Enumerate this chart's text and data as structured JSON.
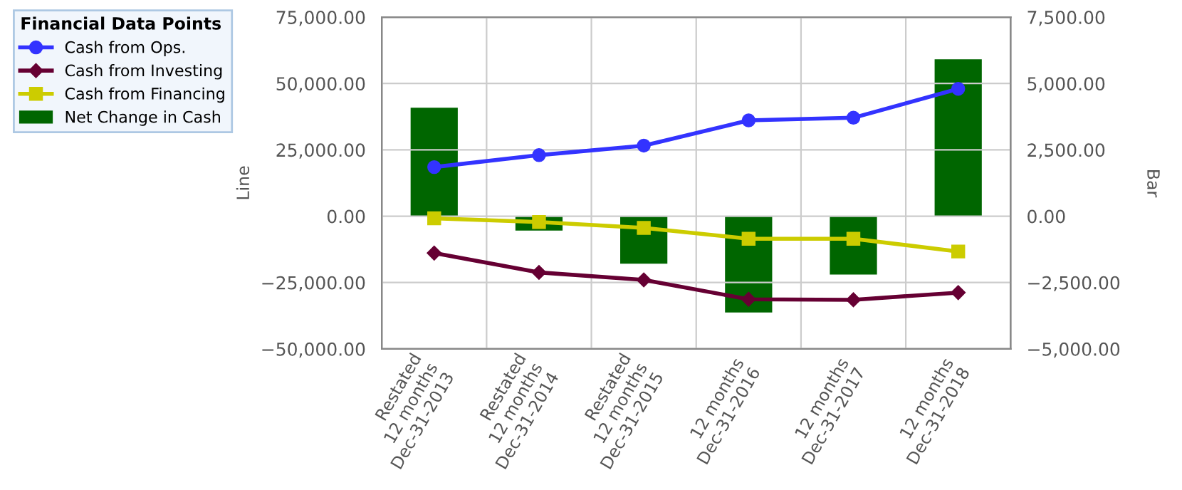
{
  "chart_data": {
    "type": "line",
    "legend_title": "Financial Data Points",
    "ylabel": "Line",
    "y2label": "Bar",
    "categories": [
      "Restated\n12 months\nDec-31-2013",
      "Restated\n12 months\nDec-31-2014",
      "Restated\n12 months\nDec-31-2015",
      "12 months\nDec-31-2016",
      "12 months\nDec-31-2017",
      "12 months\nDec-31-2018"
    ],
    "series": [
      {
        "name": "Cash from Ops.",
        "color": "#3333ff",
        "marker": "circle",
        "values": [
          18500,
          23000,
          26600,
          36100,
          37100,
          48000
        ]
      },
      {
        "name": "Cash from Investing",
        "color": "#660033",
        "marker": "diamond",
        "values": [
          -13900,
          -21200,
          -24000,
          -31300,
          -31500,
          -28800
        ]
      },
      {
        "name": "Cash from Financing",
        "color": "#cccc00",
        "marker": "square",
        "values": [
          -800,
          -2200,
          -4400,
          -8500,
          -8500,
          -13300
        ]
      },
      {
        "name": "Net Change in Cash",
        "type": "bar",
        "axis": "y2",
        "color": "#006600",
        "values": [
          4090,
          -540,
          -1790,
          -3630,
          -2200,
          5910
        ]
      }
    ],
    "ylim": [
      -50000,
      75000
    ],
    "yticks": [
      {
        "value": -50000,
        "label": "−50,000.00"
      },
      {
        "value": -25000,
        "label": "−25,000.00"
      },
      {
        "value": 0,
        "label": "0.00"
      },
      {
        "value": 25000,
        "label": "25,000.00"
      },
      {
        "value": 50000,
        "label": "50,000.00"
      },
      {
        "value": 75000,
        "label": "75,000.00"
      }
    ],
    "y2lim": [
      -5000,
      7500
    ],
    "y2ticks": [
      {
        "value": -5000,
        "label": "−5,000.00"
      },
      {
        "value": -2500,
        "label": "−2,500.00"
      },
      {
        "value": 0,
        "label": "0.00"
      },
      {
        "value": 2500,
        "label": "2,500.00"
      },
      {
        "value": 5000,
        "label": "5,000.00"
      },
      {
        "value": 7500,
        "label": "7,500.00"
      }
    ],
    "grid": true,
    "legend": "left"
  }
}
